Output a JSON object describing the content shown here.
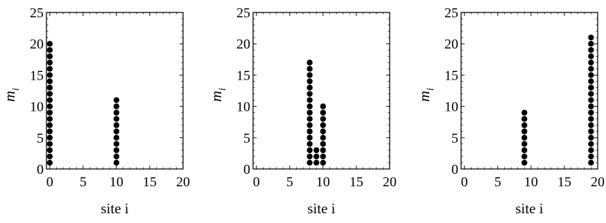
{
  "chart_data": [
    {
      "type": "scatter",
      "xlabel": "site i",
      "ylabel": "m",
      "ylabel_sub": "i",
      "xlim": [
        -0.5,
        20
      ],
      "ylim": [
        0,
        25
      ],
      "xticks": [
        "0",
        "5",
        "10",
        "15",
        "20"
      ],
      "yticks": [
        "0",
        "5",
        "10",
        "15",
        "20",
        "25"
      ],
      "columns": [
        {
          "x": 0,
          "height": 20
        },
        {
          "x": 10,
          "height": 11
        }
      ]
    },
    {
      "type": "scatter",
      "xlabel": "site i",
      "ylabel": "m",
      "ylabel_sub": "i",
      "xlim": [
        -0.5,
        20
      ],
      "ylim": [
        0,
        25
      ],
      "xticks": [
        "0",
        "5",
        "10",
        "15",
        "20"
      ],
      "yticks": [
        "0",
        "5",
        "10",
        "15",
        "20",
        "25"
      ],
      "columns": [
        {
          "x": 8,
          "height": 17
        },
        {
          "x": 9,
          "height": 3
        },
        {
          "x": 10,
          "height": 10
        }
      ]
    },
    {
      "type": "scatter",
      "xlabel": "site i",
      "ylabel": "m",
      "ylabel_sub": "i",
      "xlim": [
        -0.5,
        20
      ],
      "ylim": [
        0,
        25
      ],
      "xticks": [
        "0",
        "5",
        "10",
        "15",
        "20"
      ],
      "yticks": [
        "0",
        "5",
        "10",
        "15",
        "20",
        "25"
      ],
      "columns": [
        {
          "x": 9,
          "height": 9
        },
        {
          "x": 19,
          "height": 21
        }
      ]
    }
  ]
}
